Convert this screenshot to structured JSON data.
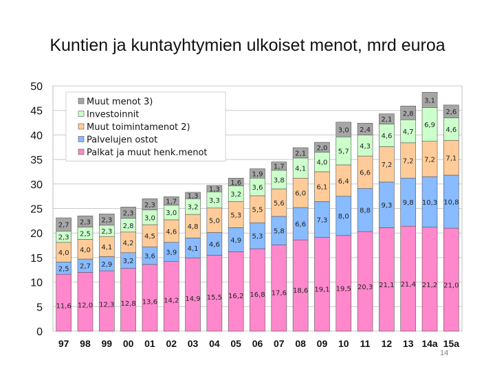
{
  "slide": {
    "title": "Kuntien ja kuntayhtymien ulkoiset menot, mrd euroa",
    "page_number": "14"
  },
  "chart_data": {
    "type": "bar",
    "stacked": true,
    "title": "Kuntien ja kuntayhtymien ulkoiset menot, mrd euroa",
    "xlabel": "",
    "ylabel": "",
    "ylim": [
      0,
      50
    ],
    "yticks": [
      0,
      5,
      10,
      15,
      20,
      25,
      30,
      35,
      40,
      45,
      50
    ],
    "grid": true,
    "legend_position": "top-left",
    "categories": [
      "97",
      "98",
      "99",
      "00",
      "01",
      "02",
      "03",
      "04",
      "05",
      "06",
      "07",
      "08",
      "09",
      "10",
      "11",
      "12",
      "13",
      "14a",
      "15a"
    ],
    "series": [
      {
        "name": "Palkat ja muut henk.menot",
        "color": "#ff88cc",
        "values": [
          11.6,
          12.0,
          12.3,
          12.8,
          13.6,
          14.2,
          14.9,
          15.5,
          16.2,
          16.8,
          17.6,
          18.6,
          19.1,
          19.5,
          20.3,
          21.1,
          21.4,
          21.2,
          21.0
        ],
        "labels": [
          "11,6",
          "12,0",
          "12,3",
          "12,8",
          "13,6",
          "14,2",
          "14,9",
          "15,5",
          "16,2",
          "16,8",
          "17,6",
          "18,6",
          "19,1",
          "19,5",
          "20,3",
          "21,1",
          "21,4",
          "21,2",
          "21,0"
        ]
      },
      {
        "name": "Palvelujen ostot",
        "color": "#88bbff",
        "values": [
          2.5,
          2.7,
          2.9,
          3.2,
          3.6,
          3.9,
          4.1,
          4.6,
          4.9,
          5.3,
          5.8,
          6.6,
          7.3,
          8.0,
          8.8,
          9.3,
          9.8,
          10.3,
          10.8
        ],
        "labels": [
          "2,5",
          "2,7",
          "2,9",
          "3,2",
          "3,6",
          "3,9",
          "4,1",
          "4,6",
          "4,9",
          "5,3",
          "5,8",
          "6,6",
          "7,3",
          "8,0",
          "8,8",
          "9,3",
          "9,8",
          "10,3",
          "10,8"
        ]
      },
      {
        "name": "Muut toimintamenot 2)",
        "color": "#ffcc99",
        "values": [
          4.0,
          4.0,
          4.1,
          4.2,
          4.5,
          4.6,
          4.8,
          5.0,
          5.3,
          5.5,
          5.6,
          6.0,
          6.1,
          6.4,
          6.6,
          7.2,
          7.2,
          7.2,
          7.1
        ],
        "labels": [
          "4,0",
          "4,0",
          "4,1",
          "4,2",
          "4,5",
          "4,6",
          "4,8",
          "5,0",
          "5,3",
          "5,5",
          "5,6",
          "6,0",
          "6,1",
          "6,4",
          "6,6",
          "7,2",
          "7,2",
          "7,2",
          "7,1"
        ]
      },
      {
        "name": "Investoinnit",
        "color": "#ccffcc",
        "values": [
          2.3,
          2.5,
          2.3,
          2.8,
          3.0,
          3.0,
          3.2,
          3.3,
          3.2,
          3.6,
          3.8,
          4.1,
          4.0,
          5.7,
          4.3,
          4.6,
          4.7,
          6.9,
          4.6
        ],
        "labels": [
          "2,3",
          "2,5",
          "2,3",
          "2,8",
          "3,0",
          "3,0",
          "3,2",
          "3,3",
          "3,2",
          "3,6",
          "3,8",
          "4,1",
          "4,0",
          "5,7",
          "4,3",
          "4,6",
          "4,7",
          "6,9",
          "4,6"
        ]
      },
      {
        "name": "Muut menot 3)",
        "color": "#a6a6a6",
        "values": [
          2.7,
          2.3,
          2.3,
          2.3,
          2.3,
          1.7,
          1.3,
          1.3,
          1.6,
          1.9,
          1.7,
          2.1,
          2.0,
          3.0,
          2.4,
          2.1,
          2.8,
          3.1,
          2.6
        ],
        "labels": [
          "2,7",
          "2,3",
          "2,3",
          "2,3",
          "2,3",
          "1,7",
          "1,3",
          "1,3",
          "1,6",
          "1,9",
          "1,7",
          "2,1",
          "2,0",
          "3,0",
          "2,4",
          "2,1",
          "2,8",
          "3,1",
          "2,6"
        ]
      }
    ],
    "legend_order": [
      "Muut menot 3)",
      "Investoinnit",
      "Muut toimintamenot 2)",
      "Palvelujen ostot",
      "Palkat ja muut henk.menot"
    ]
  }
}
